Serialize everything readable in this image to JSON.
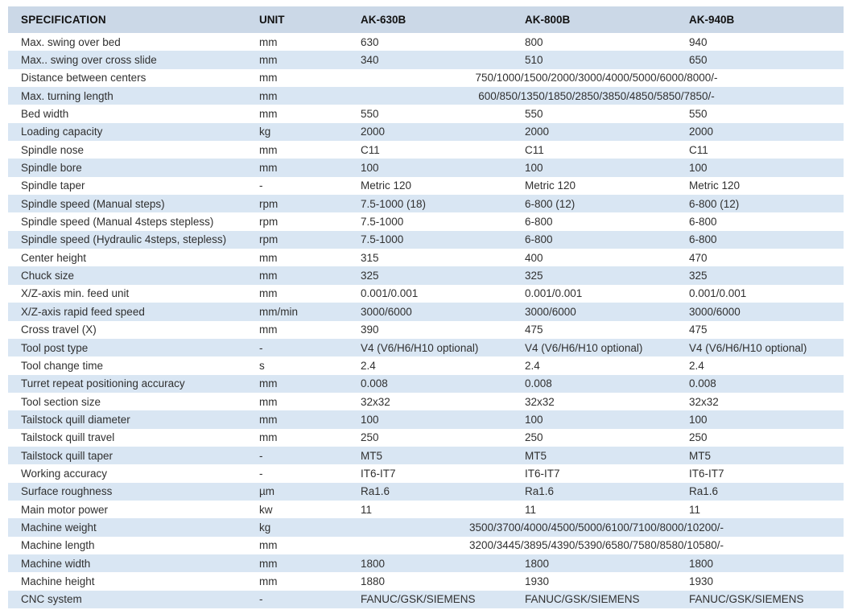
{
  "table": {
    "colors": {
      "header_bg": "#cbd8e7",
      "stripe_bg": "#d9e6f3",
      "body_text": "#303030",
      "header_text": "#121212"
    },
    "columns": [
      {
        "key": "spec",
        "label": "SPECIFICATION"
      },
      {
        "key": "unit",
        "label": "UNIT"
      },
      {
        "key": "m1",
        "label": "AK-630B"
      },
      {
        "key": "m2",
        "label": "AK-800B"
      },
      {
        "key": "m3",
        "label": "AK-940B"
      }
    ],
    "rows": [
      {
        "spec": "Max. swing over bed",
        "unit": "mm",
        "values": [
          "630",
          "800",
          "940"
        ]
      },
      {
        "spec": "Max.. swing over cross slide",
        "unit": "mm",
        "values": [
          "340",
          "510",
          "650"
        ]
      },
      {
        "spec": "Distance between centers",
        "unit": "mm",
        "span": "750/1000/1500/2000/3000/4000/5000/6000/8000/-"
      },
      {
        "spec": "Max. turning length",
        "unit": "mm",
        "span": "600/850/1350/1850/2850/3850/4850/5850/7850/-"
      },
      {
        "spec": "Bed width",
        "unit": "mm",
        "values": [
          "550",
          "550",
          "550"
        ]
      },
      {
        "spec": "Loading capacity",
        "unit": "kg",
        "values": [
          "2000",
          "2000",
          "2000"
        ]
      },
      {
        "spec": "Spindle nose",
        "unit": "mm",
        "values": [
          "C11",
          "C11",
          "C11"
        ]
      },
      {
        "spec": "Spindle bore",
        "unit": "mm",
        "values": [
          "100",
          "100",
          "100"
        ]
      },
      {
        "spec": "Spindle taper",
        "unit": "-",
        "values": [
          "Metric 120",
          "Metric 120",
          "Metric 120"
        ]
      },
      {
        "spec": "Spindle speed (Manual steps)",
        "unit": "rpm",
        "values": [
          "7.5-1000 (18)",
          "6-800 (12)",
          "6-800 (12)"
        ]
      },
      {
        "spec": "Spindle speed (Manual 4steps stepless)",
        "unit": "rpm",
        "values": [
          "7.5-1000",
          "6-800",
          "6-800"
        ]
      },
      {
        "spec": "Spindle speed (Hydraulic 4steps, stepless)",
        "unit": "rpm",
        "values": [
          "7.5-1000",
          "6-800",
          "6-800"
        ]
      },
      {
        "spec": "Center height",
        "unit": "mm",
        "values": [
          "315",
          "400",
          "470"
        ]
      },
      {
        "spec": "Chuck size",
        "unit": "mm",
        "values": [
          "325",
          "325",
          "325"
        ]
      },
      {
        "spec": "X/Z-axis min. feed unit",
        "unit": "mm",
        "values": [
          "0.001/0.001",
          "0.001/0.001",
          "0.001/0.001"
        ]
      },
      {
        "spec": "X/Z-axis rapid feed speed",
        "unit": "mm/min",
        "values": [
          "3000/6000",
          "3000/6000",
          "3000/6000"
        ]
      },
      {
        "spec": "Cross travel (X)",
        "unit": "mm",
        "values": [
          "390",
          "475",
          "475"
        ]
      },
      {
        "spec": "Tool post type",
        "unit": "-",
        "values": [
          "V4 (V6/H6/H10 optional)",
          "V4 (V6/H6/H10 optional)",
          "V4 (V6/H6/H10 optional)"
        ]
      },
      {
        "spec": "Tool change time",
        "unit": "s",
        "values": [
          "2.4",
          "2.4",
          "2.4"
        ]
      },
      {
        "spec": "Turret repeat positioning accuracy",
        "unit": "mm",
        "values": [
          "0.008",
          "0.008",
          "0.008"
        ]
      },
      {
        "spec": "Tool section size",
        "unit": "mm",
        "values": [
          "32x32",
          "32x32",
          "32x32"
        ]
      },
      {
        "spec": "Tailstock quill diameter",
        "unit": "mm",
        "values": [
          "100",
          "100",
          "100"
        ]
      },
      {
        "spec": "Tailstock quill travel",
        "unit": "mm",
        "values": [
          "250",
          "250",
          "250"
        ]
      },
      {
        "spec": "Tailstock quill taper",
        "unit": "-",
        "values": [
          "MT5",
          "MT5",
          "MT5"
        ]
      },
      {
        "spec": "Working accuracy",
        "unit": "-",
        "values": [
          "IT6-IT7",
          "IT6-IT7",
          "IT6-IT7"
        ]
      },
      {
        "spec": "Surface roughness",
        "unit": "µm",
        "values": [
          "Ra1.6",
          "Ra1.6",
          "Ra1.6"
        ]
      },
      {
        "spec": "Main motor power",
        "unit": "kw",
        "values": [
          "11",
          "11",
          "11"
        ]
      },
      {
        "spec": "Machine weight",
        "unit": "kg",
        "span": "3500/3700/4000/4500/5000/6100/7100/8000/10200/-"
      },
      {
        "spec": "Machine length",
        "unit": "mm",
        "span": "3200/3445/3895/4390/5390/6580/7580/8580/10580/-"
      },
      {
        "spec": "Machine width",
        "unit": "mm",
        "values": [
          "1800",
          "1800",
          "1800"
        ]
      },
      {
        "spec": "Machine height",
        "unit": "mm",
        "values": [
          "1880",
          "1930",
          "1930"
        ]
      },
      {
        "spec": "CNC system",
        "unit": "-",
        "values": [
          "FANUC/GSK/SIEMENS",
          "FANUC/GSK/SIEMENS",
          "FANUC/GSK/SIEMENS"
        ]
      }
    ]
  }
}
